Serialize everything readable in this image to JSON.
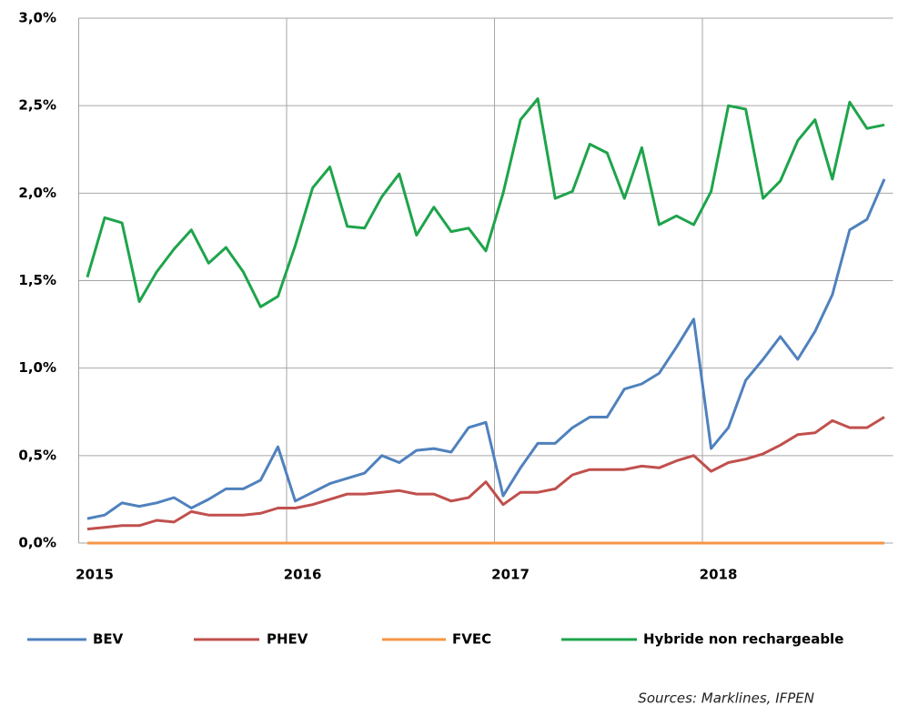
{
  "chart_data": {
    "type": "line",
    "categories": [
      "2015",
      null,
      null,
      null,
      null,
      null,
      null,
      null,
      null,
      null,
      null,
      null,
      "2016",
      null,
      null,
      null,
      null,
      null,
      null,
      null,
      null,
      null,
      null,
      null,
      "2017",
      null,
      null,
      null,
      null,
      null,
      null,
      null,
      null,
      null,
      null,
      null,
      "2018",
      null,
      null,
      null,
      null,
      null,
      null,
      null,
      null,
      null,
      null
    ],
    "series": [
      {
        "name": "BEV",
        "color": "#4f81bd",
        "values": [
          0.14,
          0.16,
          0.23,
          0.21,
          0.23,
          0.26,
          0.2,
          0.25,
          0.31,
          0.31,
          0.36,
          0.55,
          0.24,
          0.29,
          0.34,
          0.37,
          0.4,
          0.5,
          0.46,
          0.53,
          0.54,
          0.52,
          0.66,
          0.69,
          0.27,
          0.43,
          0.57,
          0.57,
          0.66,
          0.72,
          0.72,
          0.88,
          0.91,
          0.97,
          1.12,
          1.28,
          0.54,
          0.66,
          0.93,
          1.05,
          1.18,
          1.05,
          1.21,
          1.42,
          1.79,
          1.85,
          2.08
        ]
      },
      {
        "name": "PHEV",
        "color": "#c0504d",
        "values": [
          0.08,
          0.09,
          0.1,
          0.1,
          0.13,
          0.12,
          0.18,
          0.16,
          0.16,
          0.16,
          0.17,
          0.2,
          0.2,
          0.22,
          0.25,
          0.28,
          0.28,
          0.29,
          0.3,
          0.28,
          0.28,
          0.24,
          0.26,
          0.35,
          0.22,
          0.29,
          0.29,
          0.31,
          0.39,
          0.42,
          0.42,
          0.42,
          0.44,
          0.43,
          0.47,
          0.5,
          0.41,
          0.46,
          0.48,
          0.51,
          0.56,
          0.62,
          0.63,
          0.7,
          0.66,
          0.66,
          0.72
        ]
      },
      {
        "name": "FVEC",
        "color": "#f79646",
        "values": [
          0,
          0,
          0,
          0,
          0,
          0,
          0,
          0,
          0,
          0,
          0,
          0,
          0,
          0,
          0,
          0,
          0,
          0,
          0,
          0,
          0,
          0,
          0,
          0,
          0,
          0,
          0,
          0,
          0,
          0,
          0,
          0,
          0,
          0,
          0,
          0,
          0,
          0,
          0,
          0,
          0,
          0,
          0,
          0,
          0,
          0,
          0
        ]
      },
      {
        "name": "Hybride non rechargeable",
        "color": "#1ea44b",
        "values": [
          1.52,
          1.86,
          1.83,
          1.38,
          1.55,
          1.68,
          1.79,
          1.6,
          1.69,
          1.55,
          1.35,
          1.41,
          1.7,
          2.03,
          2.15,
          1.81,
          1.8,
          1.98,
          2.11,
          1.76,
          1.92,
          1.78,
          1.8,
          1.67,
          2.0,
          2.42,
          2.54,
          1.97,
          2.01,
          2.28,
          2.23,
          1.97,
          2.26,
          1.82,
          1.87,
          1.82,
          2.01,
          2.5,
          2.48,
          1.97,
          2.07,
          2.3,
          2.42,
          2.08,
          2.52,
          2.37,
          2.39
        ]
      }
    ],
    "ylim": [
      0,
      3
    ],
    "yticks": [
      {
        "value": 0,
        "label": "0,0%"
      },
      {
        "value": 0.5,
        "label": "0,5%"
      },
      {
        "value": 1,
        "label": "1,0%"
      },
      {
        "value": 1.5,
        "label": "1,5%"
      },
      {
        "value": 2,
        "label": "2,0%"
      },
      {
        "value": 2.5,
        "label": "2,5%"
      },
      {
        "value": 3,
        "label": "3,0%"
      }
    ],
    "grid": true,
    "legend": "bottom",
    "source": "Sources: Marklines, IFPEN"
  }
}
